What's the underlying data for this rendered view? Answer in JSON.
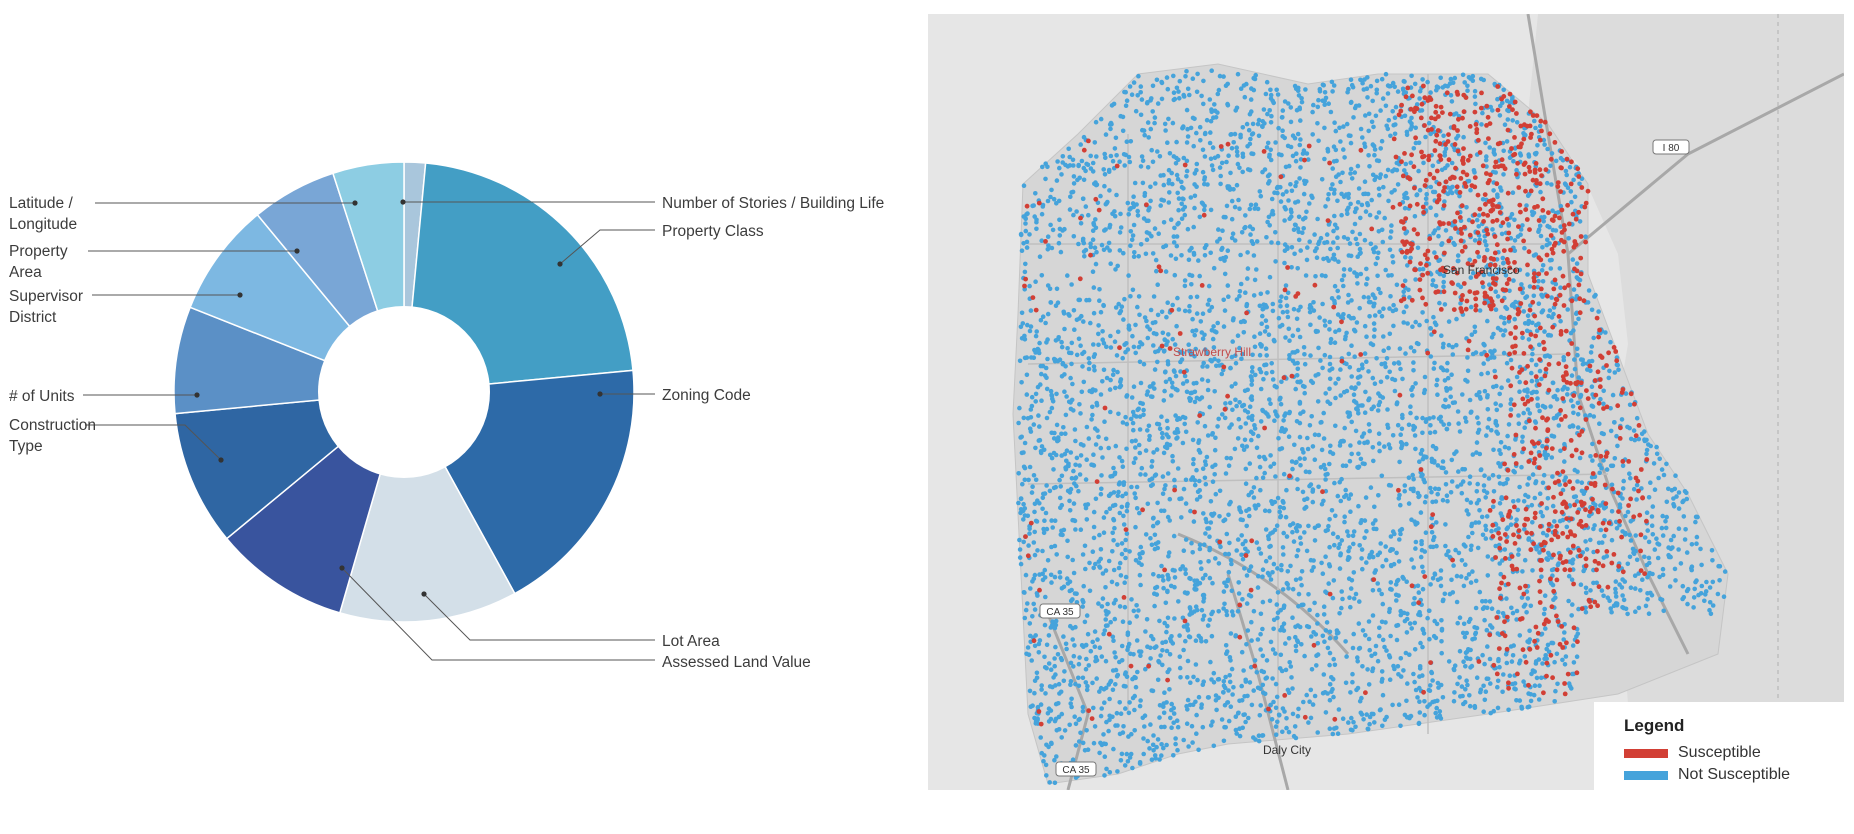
{
  "chart_data": [
    {
      "type": "pie",
      "donut": true,
      "title": "",
      "slices": [
        {
          "label": "Number of Stories / Building Life",
          "value": 1.5,
          "color": "#a9c6dc"
        },
        {
          "label": "Property Class",
          "value": 22,
          "color": "#439ec5"
        },
        {
          "label": "Zoning Code",
          "value": 18.5,
          "color": "#2d6aa8"
        },
        {
          "label": "Lot Area",
          "value": 12.5,
          "color": "#d3dfe8"
        },
        {
          "label": "Assessed Land Value",
          "value": 9.5,
          "color": "#39549e"
        },
        {
          "label": "Construction Type",
          "value": 9.5,
          "color": "#2f66a3"
        },
        {
          "label": "# of Units",
          "value": 7.5,
          "color": "#5b90c6"
        },
        {
          "label": "Supervisor District",
          "value": 8,
          "color": "#7db8e2"
        },
        {
          "label": "Property Area",
          "value": 6,
          "color": "#79a6d6"
        },
        {
          "label": "Latitude / Longitude",
          "value": 5,
          "color": "#8dcde3"
        }
      ]
    },
    {
      "type": "scatter",
      "description_kind": "map",
      "legend": {
        "title": "Legend",
        "position": "bottom-right",
        "entries": [
          {
            "label": "Susceptible",
            "color": "#d23f35"
          },
          {
            "label": "Not Susceptible",
            "color": "#45a3db"
          }
        ]
      },
      "place_labels": [
        "San Francisco",
        "Strawberry Hill",
        "I 80",
        "CA 35",
        "Daly City"
      ]
    }
  ],
  "donut_labels": {
    "stories": "Number of Stories / Building Life",
    "property_class": "Property Class",
    "zoning": "Zoning Code",
    "lot_area": "Lot Area",
    "assessed": "Assessed Land Value",
    "latlon_1": "Latitude /",
    "latlon_2": "Longitude",
    "prop_area_1": "Property",
    "prop_area_2": "Area",
    "supervisor_1": "Supervisor",
    "supervisor_2": "District",
    "units": "# of Units",
    "construction_1": "Construction",
    "construction_2": "Type"
  },
  "map": {
    "city_label": "San Francisco",
    "strawberry_label": "Strawberry Hill",
    "highway_i80": "I 80",
    "highway_ca35": "CA 35",
    "daly_city": "Daly City",
    "legend_title": "Legend",
    "legend_susceptible": "Susceptible",
    "legend_not_susceptible": "Not Susceptible",
    "colors": {
      "susceptible": "#d23f35",
      "not_susceptible": "#45a3db",
      "land": "#e3e3e3"
    }
  }
}
